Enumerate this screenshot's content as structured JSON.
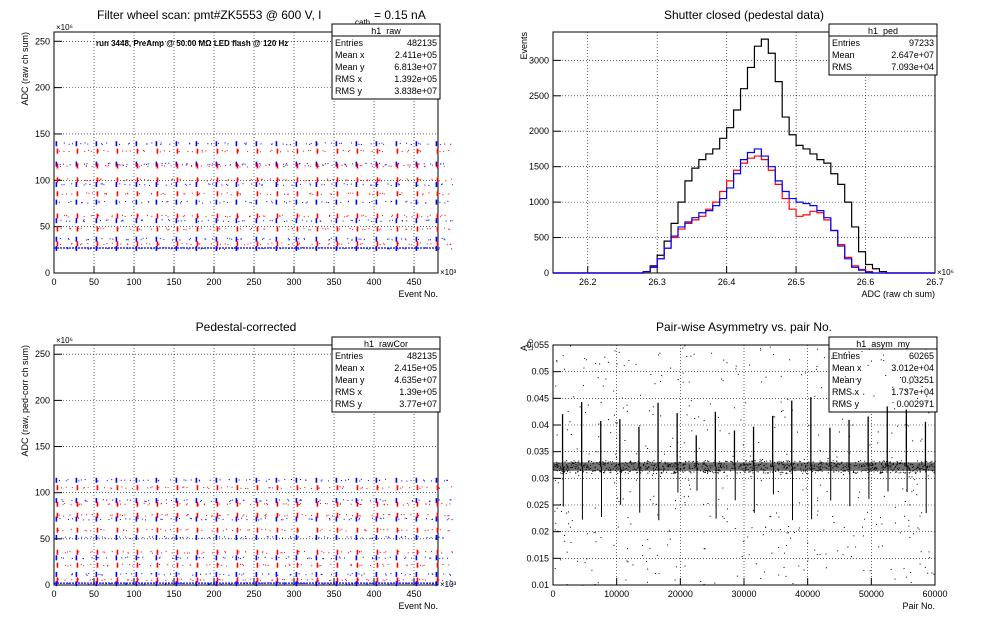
{
  "chart_data": [
    {
      "type": "scatter",
      "title_a": "Filter wheel scan: pmt#ZK5553 @   600 V, I",
      "title_sub": "cath",
      "title_b": " = 0.15 nA",
      "annotation": "run 3448, PreAmp @ 50.00 MΩ LED flash @  120 Hz",
      "xlabel": "Event No.",
      "ylabel": "ADC (raw ch sum)",
      "xlim": [
        0,
        480
      ],
      "ylim": [
        0,
        260
      ],
      "x_exponent": "×10³",
      "y_exponent": "×10⁶",
      "x_ticks": [
        "0",
        "50",
        "100",
        "150",
        "200",
        "250",
        "300",
        "350",
        "400",
        "450"
      ],
      "y_ticks": [
        "0",
        "50",
        "100",
        "150",
        "200",
        "250"
      ],
      "grid": true,
      "stats": {
        "name": "h1_raw",
        "rows": [
          [
            "Entries",
            "482135"
          ],
          [
            "Mean x",
            "2.411e+05"
          ],
          [
            "Mean y",
            "6.813e+07"
          ],
          [
            "RMS x",
            "1.392e+05"
          ],
          [
            "RMS y",
            "3.838e+07"
          ]
        ]
      },
      "series": [
        {
          "name": "",
          "color": "#0000ff",
          "levels": [
            27,
            37,
            57,
            77,
            96,
            118,
            140
          ]
        },
        {
          "name": "",
          "color": "#ff0000",
          "levels": [
            32,
            48,
            62,
            86,
            101,
            116,
            132
          ]
        }
      ],
      "block_period": 25
    },
    {
      "type": "line",
      "title": "Shutter closed (pedestal data)",
      "xlabel": "ADC (raw ch sum)",
      "ylabel": "Events",
      "xlim": [
        26.15,
        26.7
      ],
      "ylim": [
        0,
        3400
      ],
      "x_exponent": "×10⁶",
      "x_ticks": [
        "26.2",
        "26.3",
        "26.4",
        "26.5",
        "26.6",
        "26.7"
      ],
      "y_ticks": [
        "0",
        "500",
        "1000",
        "1500",
        "2000",
        "2500",
        "3000"
      ],
      "grid": true,
      "stats": {
        "name": "h1_ped",
        "rows": [
          [
            "Entries",
            "97233"
          ],
          [
            "Mean",
            "2.647e+07"
          ],
          [
            "RMS",
            "7.093e+04"
          ]
        ]
      },
      "series": [
        {
          "name": "",
          "color": "#000000",
          "x": [
            26.28,
            26.29,
            26.3,
            26.31,
            26.32,
            26.33,
            26.34,
            26.35,
            26.36,
            26.37,
            26.38,
            26.39,
            26.4,
            26.41,
            26.42,
            26.43,
            26.44,
            26.45,
            26.46,
            26.47,
            26.48,
            26.49,
            26.5,
            26.51,
            26.52,
            26.53,
            26.54,
            26.55,
            26.56,
            26.57,
            26.58,
            26.59,
            26.6,
            26.61,
            26.62,
            26.63
          ],
          "y": [
            20,
            100,
            250,
            450,
            700,
            1000,
            1300,
            1480,
            1600,
            1680,
            1750,
            1900,
            2050,
            2300,
            2600,
            2900,
            3200,
            3300,
            3100,
            2700,
            2200,
            1950,
            1800,
            1750,
            1680,
            1600,
            1550,
            1400,
            1250,
            1000,
            650,
            300,
            120,
            60,
            20,
            0
          ]
        },
        {
          "name": "",
          "color": "#ff0000",
          "x": [
            26.28,
            26.29,
            26.3,
            26.31,
            26.32,
            26.33,
            26.34,
            26.35,
            26.36,
            26.37,
            26.38,
            26.39,
            26.4,
            26.41,
            26.42,
            26.43,
            26.44,
            26.45,
            26.46,
            26.47,
            26.48,
            26.49,
            26.5,
            26.51,
            26.52,
            26.53,
            26.54,
            26.55,
            26.56,
            26.57,
            26.58,
            26.59,
            26.6,
            26.61,
            26.62,
            26.63
          ],
          "y": [
            20,
            80,
            200,
            350,
            500,
            620,
            700,
            750,
            800,
            900,
            1000,
            1150,
            1300,
            1450,
            1550,
            1620,
            1650,
            1600,
            1450,
            1250,
            1050,
            900,
            800,
            820,
            870,
            850,
            750,
            600,
            400,
            220,
            100,
            50,
            20,
            0,
            0,
            0
          ]
        },
        {
          "name": "",
          "color": "#0000ff",
          "x": [
            26.28,
            26.29,
            26.3,
            26.31,
            26.32,
            26.33,
            26.34,
            26.35,
            26.36,
            26.37,
            26.38,
            26.39,
            26.4,
            26.41,
            26.42,
            26.43,
            26.44,
            26.45,
            26.46,
            26.47,
            26.48,
            26.49,
            26.5,
            26.51,
            26.52,
            26.53,
            26.54,
            26.55,
            26.56,
            26.57,
            26.58,
            26.59,
            26.6,
            26.61,
            26.62,
            26.63
          ],
          "y": [
            20,
            80,
            200,
            350,
            520,
            650,
            720,
            780,
            850,
            880,
            950,
            1050,
            1200,
            1400,
            1600,
            1700,
            1750,
            1650,
            1500,
            1300,
            1150,
            1050,
            1000,
            980,
            950,
            880,
            780,
            600,
            380,
            200,
            80,
            40,
            10,
            0,
            0,
            0
          ]
        }
      ]
    },
    {
      "type": "scatter",
      "title": "Pedestal-corrected",
      "xlabel": "Event No.",
      "ylabel": "ADC (raw, ped-corr ch sum)",
      "xlim": [
        0,
        480
      ],
      "ylim": [
        0,
        260
      ],
      "x_exponent": "×10³",
      "y_exponent": "×10⁶",
      "x_ticks": [
        "0",
        "50",
        "100",
        "150",
        "200",
        "250",
        "300",
        "350",
        "400",
        "450"
      ],
      "y_ticks": [
        "0",
        "50",
        "100",
        "150",
        "200",
        "250"
      ],
      "grid": true,
      "stats": {
        "name": "h1_rawCor",
        "rows": [
          [
            "Entries",
            "482135"
          ],
          [
            "Mean x",
            "2.415e+05"
          ],
          [
            "Mean y",
            "4.635e+07"
          ],
          [
            "RMS x",
            "1.39e+05"
          ],
          [
            "RMS y",
            "3.77e+07"
          ]
        ]
      },
      "series": [
        {
          "name": "",
          "color": "#0000ff",
          "levels": [
            2,
            12,
            30,
            52,
            72,
            92,
            114
          ]
        },
        {
          "name": "",
          "color": "#ff0000",
          "levels": [
            6,
            22,
            36,
            60,
            76,
            88,
            106
          ]
        }
      ],
      "block_period": 25
    },
    {
      "type": "scatter",
      "title": "Pair-wise Asymmetry vs. pair No.",
      "xlabel": "Pair No.",
      "ylabel": "A",
      "ylabel_sub": "LED",
      "xlim": [
        0,
        60000
      ],
      "ylim": [
        0.01,
        0.055
      ],
      "x_ticks": [
        "0",
        "10000",
        "20000",
        "30000",
        "40000",
        "50000",
        "60000"
      ],
      "y_ticks": [
        "0.01",
        "0.015",
        "0.02",
        "0.025",
        "0.03",
        "0.035",
        "0.04",
        "0.045",
        "0.05",
        "0.055"
      ],
      "grid": true,
      "stats": {
        "name": "h1_asym_my",
        "rows": [
          [
            "Entries",
            "60265"
          ],
          [
            "Mean x",
            "3.012e+04"
          ],
          [
            "Mean y",
            "0.03251"
          ],
          [
            "RMS x",
            "1.737e+04"
          ],
          [
            "RMS y",
            "0.002971"
          ]
        ]
      },
      "series": [
        {
          "name": "",
          "color": "#000000",
          "band_center": 0.0322,
          "band_halfwidth": 0.0012,
          "spike_period": 3000
        }
      ]
    }
  ]
}
